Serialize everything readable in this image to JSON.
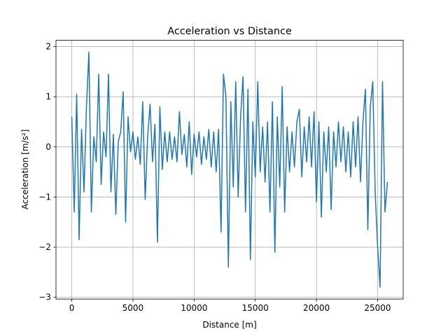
{
  "chart_data": {
    "type": "line",
    "title": "Acceleration vs Distance",
    "xlabel": "Distance [m]",
    "ylabel": "Acceleration [m/s²]",
    "color": "#1f77b4",
    "grid": true,
    "xlim": [
      -1290,
      27090
    ],
    "ylim": [
      -3.035,
      2.125
    ],
    "xticks": [
      0,
      5000,
      10000,
      15000,
      20000,
      25000
    ],
    "yticks": [
      {
        "value": -3,
        "label": "−3"
      },
      {
        "value": -2,
        "label": "−2"
      },
      {
        "value": -1,
        "label": "−1"
      },
      0,
      1,
      2
    ],
    "x": [
      0,
      200,
      400,
      600,
      800,
      1000,
      1200,
      1400,
      1600,
      1800,
      2000,
      2200,
      2400,
      2600,
      2800,
      3000,
      3200,
      3400,
      3600,
      3800,
      4000,
      4200,
      4400,
      4600,
      4800,
      5000,
      5200,
      5400,
      5600,
      5800,
      6000,
      6200,
      6400,
      6600,
      6800,
      7000,
      7200,
      7400,
      7600,
      7800,
      8000,
      8200,
      8400,
      8600,
      8800,
      9000,
      9200,
      9400,
      9600,
      9800,
      10000,
      10200,
      10400,
      10600,
      10800,
      11000,
      11200,
      11400,
      11600,
      11800,
      12000,
      12200,
      12400,
      12600,
      12800,
      13000,
      13200,
      13400,
      13600,
      13800,
      14000,
      14200,
      14400,
      14600,
      14800,
      15000,
      15200,
      15400,
      15600,
      15800,
      16000,
      16200,
      16400,
      16600,
      16800,
      17000,
      17200,
      17400,
      17600,
      17800,
      18000,
      18200,
      18400,
      18600,
      18800,
      19000,
      19200,
      19400,
      19600,
      19800,
      20000,
      20200,
      20400,
      20600,
      20800,
      21000,
      21200,
      21400,
      21600,
      21800,
      22000,
      22200,
      22400,
      22600,
      22800,
      23000,
      23200,
      23400,
      23600,
      23800,
      24000,
      24200,
      24400,
      24600,
      24800,
      25000,
      25200,
      25400,
      25600,
      25800
    ],
    "values": [
      0.6,
      -1.3,
      1.05,
      -1.85,
      0.35,
      -0.9,
      0.8,
      1.89,
      -1.3,
      0.2,
      -0.3,
      1.45,
      -0.75,
      0.3,
      -0.2,
      1.45,
      -0.9,
      0.25,
      -1.35,
      0.1,
      0.3,
      1.1,
      -1.5,
      0.6,
      -0.1,
      0.3,
      -0.25,
      0.2,
      -0.35,
      0.9,
      -1.05,
      0.2,
      0.85,
      -0.3,
      0.45,
      -1.9,
      0.8,
      -0.45,
      0.3,
      -0.3,
      0.3,
      -0.25,
      0.2,
      -0.3,
      0.7,
      -0.15,
      0.25,
      -0.4,
      0.5,
      -0.55,
      0.25,
      -0.2,
      0.3,
      -0.35,
      0.2,
      -0.25,
      0.35,
      -0.4,
      0.3,
      -0.5,
      0.35,
      -1.7,
      1.45,
      1.0,
      -2.4,
      0.9,
      -0.8,
      1.3,
      -1.0,
      0.6,
      1.4,
      -1.3,
      1.15,
      -2.25,
      0.5,
      -0.6,
      1.3,
      -0.5,
      0.4,
      -0.7,
      0.5,
      -1.3,
      0.9,
      -2.1,
      0.6,
      -0.8,
      1.2,
      -1.3,
      0.4,
      -0.5,
      0.3,
      -0.4,
      0.5,
      0.75,
      -0.6,
      0.4,
      -0.3,
      0.6,
      -0.4,
      0.7,
      -1.1,
      0.5,
      -1.4,
      0.3,
      -0.5,
      0.4,
      -1.25,
      0.3,
      -0.4,
      0.5,
      -0.3,
      0.4,
      -0.5,
      0.3,
      -0.6,
      0.5,
      -0.4,
      0.6,
      -0.7,
      0.5,
      1.15,
      -1.65,
      0.8,
      1.3,
      -0.9,
      -2.0,
      -2.8,
      1.3,
      -1.3,
      -0.7
    ]
  }
}
